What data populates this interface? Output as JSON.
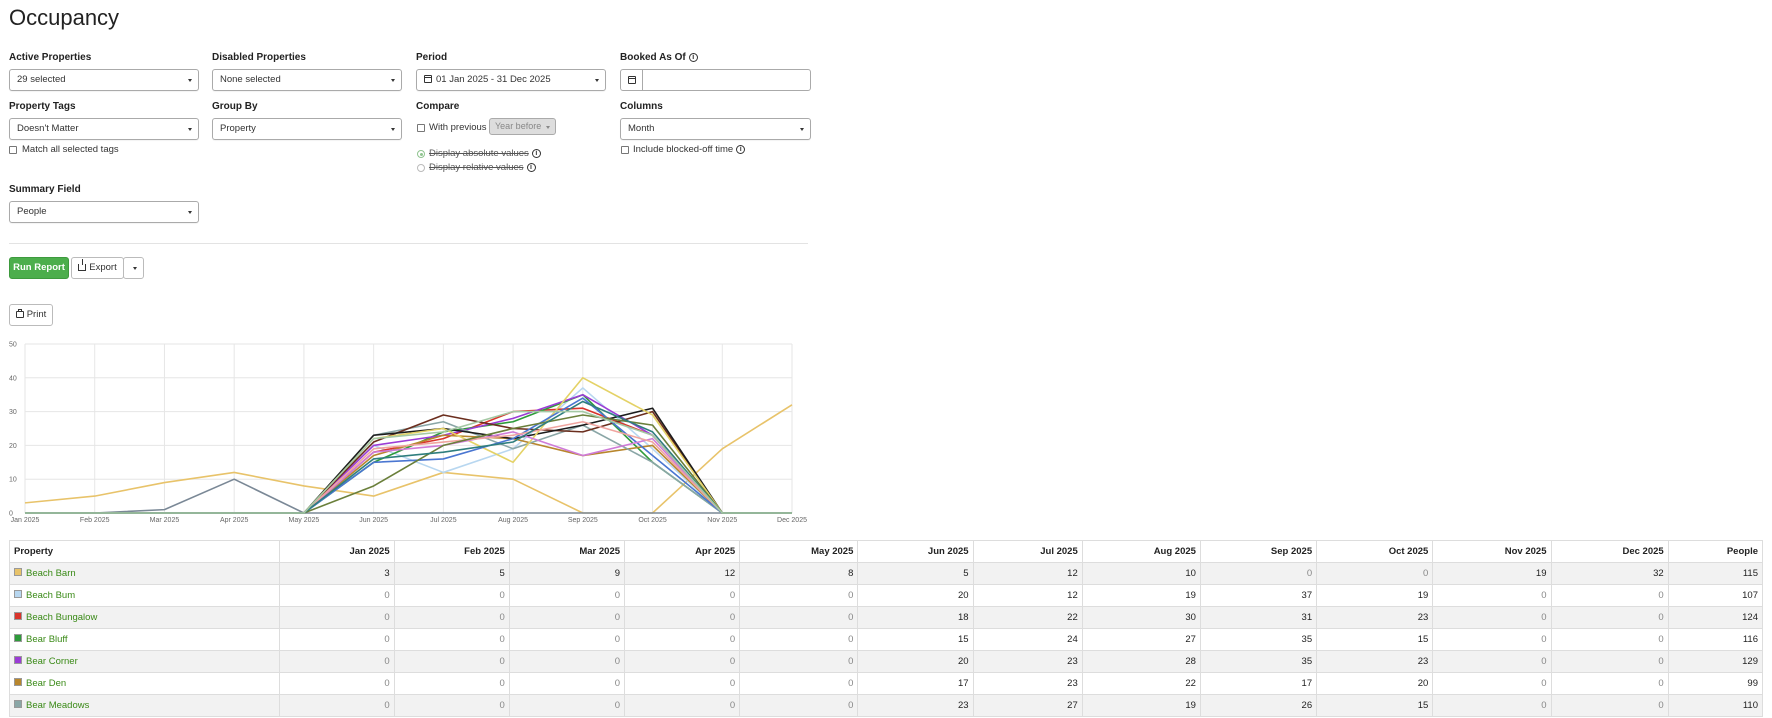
{
  "page": {
    "title": "Occupancy"
  },
  "filters": {
    "active_properties": {
      "label": "Active Properties",
      "value": "29 selected"
    },
    "disabled_properties": {
      "label": "Disabled Properties",
      "value": "None selected"
    },
    "period": {
      "label": "Period",
      "value": "01 Jan 2025 - 31 Dec 2025"
    },
    "booked_as_of": {
      "label": "Booked As Of",
      "value": ""
    },
    "property_tags": {
      "label": "Property Tags",
      "value": "Doesn't Matter",
      "match_all_label": "Match all selected tags"
    },
    "group_by": {
      "label": "Group By",
      "value": "Property"
    },
    "compare": {
      "label": "Compare",
      "with_previous_label": "With previous",
      "year_before_label": "Year before",
      "display_absolute_label": "Display absolute values",
      "display_relative_label": "Display relative values"
    },
    "columns": {
      "label": "Columns",
      "value": "Month",
      "include_blocked_label": "Include blocked-off time"
    },
    "summary_field": {
      "label": "Summary Field",
      "value": "People"
    }
  },
  "actions": {
    "run_report": "Run Report",
    "export": "Export",
    "print": "Print"
  },
  "colors": {
    "primary_button": "#4cae4c",
    "link": "#3a8a17"
  },
  "chart_data": {
    "type": "line",
    "categories": [
      "Jan 2025",
      "Feb 2025",
      "Mar 2025",
      "Apr 2025",
      "May 2025",
      "Jun 2025",
      "Jul 2025",
      "Aug 2025",
      "Sep 2025",
      "Oct 2025",
      "Nov 2025",
      "Dec 2025"
    ],
    "ylim": [
      0,
      50
    ],
    "yticks": [
      0,
      10,
      20,
      30,
      40,
      50
    ],
    "grid": true,
    "series": [
      {
        "color": "#e8c36a",
        "values": [
          3,
          5,
          9,
          12,
          8,
          5,
          12,
          10,
          0,
          0,
          19,
          32
        ]
      },
      {
        "color": "#b8d7f0",
        "values": [
          0,
          0,
          0,
          0,
          0,
          20,
          12,
          19,
          37,
          19,
          0,
          0
        ]
      },
      {
        "color": "#d9342b",
        "values": [
          0,
          0,
          0,
          0,
          0,
          18,
          22,
          30,
          31,
          23,
          0,
          0
        ]
      },
      {
        "color": "#2e9b3a",
        "values": [
          0,
          0,
          0,
          0,
          0,
          15,
          24,
          27,
          35,
          15,
          0,
          0
        ]
      },
      {
        "color": "#9b3cd6",
        "values": [
          0,
          0,
          0,
          0,
          0,
          20,
          23,
          28,
          35,
          23,
          0,
          0
        ]
      },
      {
        "color": "#b8862d",
        "values": [
          0,
          0,
          0,
          0,
          0,
          17,
          23,
          22,
          17,
          20,
          0,
          0
        ]
      },
      {
        "color": "#8aa6a6",
        "values": [
          0,
          0,
          0,
          0,
          0,
          23,
          27,
          19,
          26,
          15,
          0,
          0
        ]
      },
      {
        "color": "#7a8896",
        "values": [
          0,
          0,
          1,
          10,
          0,
          0,
          0,
          0,
          0,
          0,
          0,
          0
        ]
      },
      {
        "color": "#6b2e1e",
        "values": [
          0,
          0,
          0,
          0,
          0,
          21,
          29,
          25,
          24,
          30,
          0,
          0
        ]
      },
      {
        "color": "#1c1c1c",
        "values": [
          0,
          0,
          0,
          0,
          0,
          23,
          25,
          22,
          26,
          31,
          0,
          0
        ]
      },
      {
        "color": "#e4d266",
        "values": [
          0,
          0,
          0,
          0,
          0,
          22,
          25,
          15,
          40,
          29,
          0,
          0
        ]
      },
      {
        "color": "#4a76d1",
        "values": [
          0,
          0,
          0,
          0,
          0,
          15,
          16,
          22,
          34,
          17,
          0,
          0
        ]
      },
      {
        "color": "#cf7bd8",
        "values": [
          0,
          0,
          0,
          0,
          0,
          18,
          20,
          24,
          17,
          22,
          0,
          0
        ]
      },
      {
        "color": "#f0a5a0",
        "values": [
          0,
          0,
          0,
          0,
          0,
          19,
          21,
          23,
          27,
          21,
          0,
          0
        ]
      },
      {
        "color": "#6a7f3a",
        "values": [
          0,
          0,
          0,
          0,
          0,
          8,
          20,
          25,
          29,
          26,
          0,
          0
        ]
      },
      {
        "color": "#2f7e7e",
        "values": [
          0,
          0,
          0,
          0,
          0,
          16,
          18,
          21,
          33,
          24,
          0,
          0
        ]
      },
      {
        "color": "#a4c8a4",
        "values": [
          0,
          0,
          0,
          0,
          0,
          22,
          24,
          30,
          30,
          23,
          0,
          0
        ]
      }
    ]
  },
  "table": {
    "headers": [
      "Property",
      "Jan 2025",
      "Feb 2025",
      "Mar 2025",
      "Apr 2025",
      "May 2025",
      "Jun 2025",
      "Jul 2025",
      "Aug 2025",
      "Sep 2025",
      "Oct 2025",
      "Nov 2025",
      "Dec 2025",
      "People"
    ],
    "rows": [
      {
        "name": "Beach Barn",
        "swatch": "#e8c36a",
        "values": [
          "3",
          "5",
          "9",
          "12",
          "8",
          "5",
          "12",
          "10",
          "0",
          "0",
          "19",
          "32",
          "115"
        ]
      },
      {
        "name": "Beach Bum",
        "swatch": "#b8d7f0",
        "values": [
          "0",
          "0",
          "0",
          "0",
          "0",
          "20",
          "12",
          "19",
          "37",
          "19",
          "0",
          "0",
          "107"
        ]
      },
      {
        "name": "Beach Bungalow",
        "swatch": "#d9342b",
        "values": [
          "0",
          "0",
          "0",
          "0",
          "0",
          "18",
          "22",
          "30",
          "31",
          "23",
          "0",
          "0",
          "124"
        ]
      },
      {
        "name": "Bear Bluff",
        "swatch": "#2e9b3a",
        "values": [
          "0",
          "0",
          "0",
          "0",
          "0",
          "15",
          "24",
          "27",
          "35",
          "15",
          "0",
          "0",
          "116"
        ]
      },
      {
        "name": "Bear Corner",
        "swatch": "#9b3cd6",
        "values": [
          "0",
          "0",
          "0",
          "0",
          "0",
          "20",
          "23",
          "28",
          "35",
          "23",
          "0",
          "0",
          "129"
        ]
      },
      {
        "name": "Bear Den",
        "swatch": "#b8862d",
        "values": [
          "0",
          "0",
          "0",
          "0",
          "0",
          "17",
          "23",
          "22",
          "17",
          "20",
          "0",
          "0",
          "99"
        ]
      },
      {
        "name": "Bear Meadows",
        "swatch": "#8aa6a6",
        "values": [
          "0",
          "0",
          "0",
          "0",
          "0",
          "23",
          "27",
          "19",
          "26",
          "15",
          "0",
          "0",
          "110"
        ]
      }
    ]
  }
}
